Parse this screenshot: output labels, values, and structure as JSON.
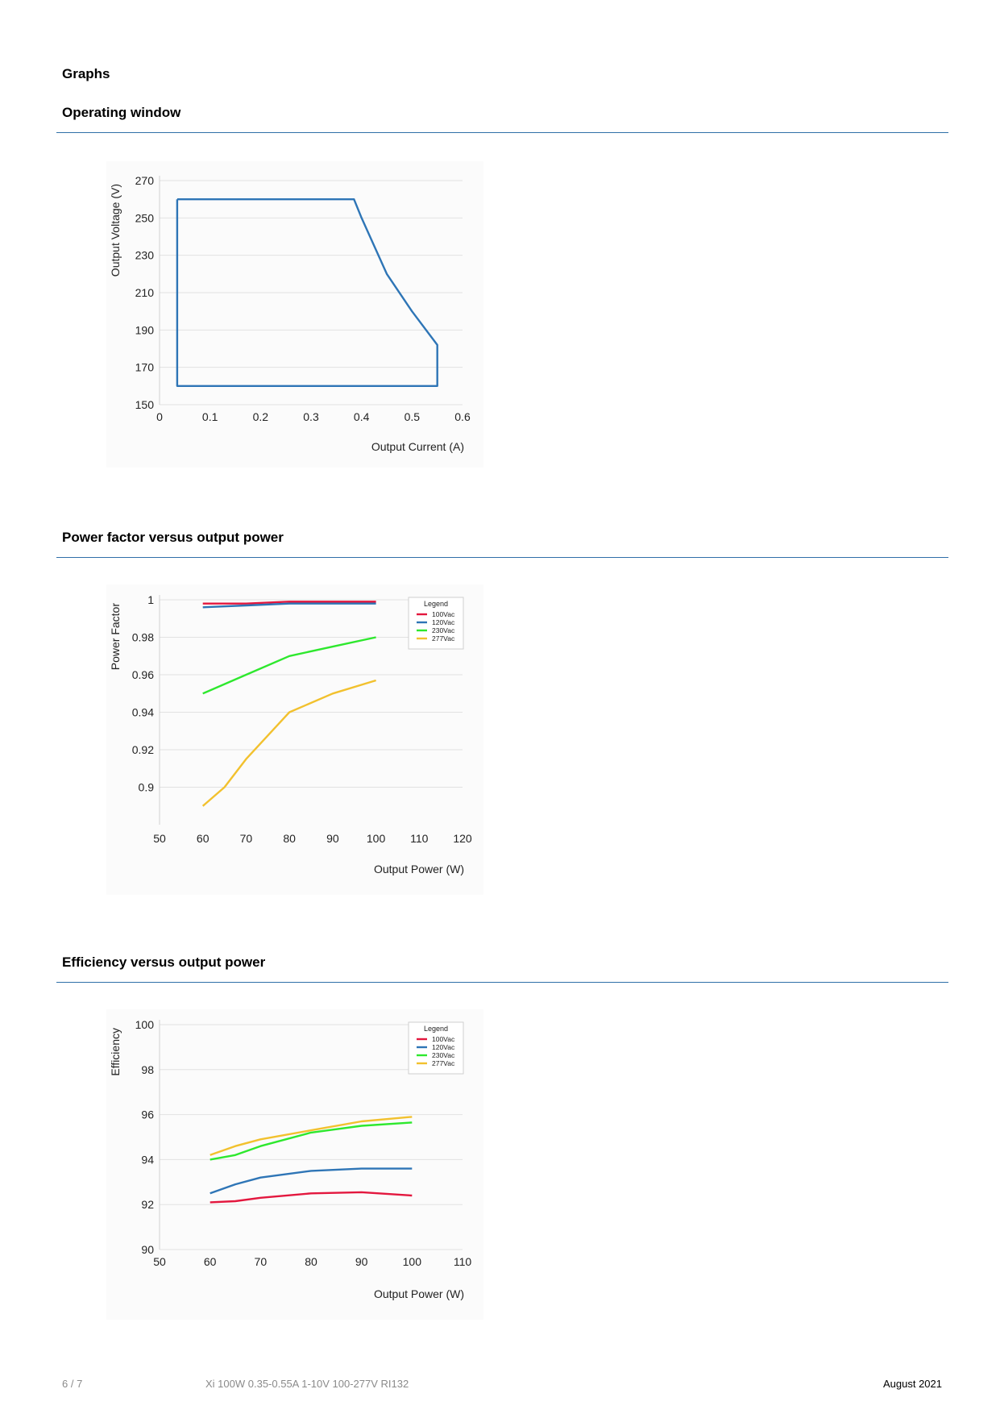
{
  "page": {
    "heading": "Graphs",
    "footer_page": "6 / 7",
    "footer_product": "Xi 100W 0.35-0.55A 1-10V 100-277V RI132",
    "footer_date": "August 2021"
  },
  "sections": [
    {
      "title": "Operating window"
    },
    {
      "title": "Power factor versus output power"
    },
    {
      "title": "Efficiency versus output power"
    }
  ],
  "chart_data": [
    {
      "type": "line",
      "title": "",
      "xlabel": "Output Current (A)",
      "ylabel": "Output Voltage (V)",
      "xlim": [
        0,
        0.6
      ],
      "ylim": [
        150,
        270
      ],
      "xticks": [
        0,
        0.1,
        0.2,
        0.3,
        0.4,
        0.5,
        0.6
      ],
      "yticks": [
        150,
        170,
        190,
        210,
        230,
        250,
        270
      ],
      "xtick_labels": [
        "0",
        "0.1",
        "0.2",
        "0.3",
        "0.4",
        "0.5",
        "0.6"
      ],
      "ytick_labels": [
        "150",
        "170",
        "190",
        "210",
        "230",
        "250",
        "270"
      ],
      "grid": true,
      "legend": null,
      "series": [
        {
          "color": "#2e75b6",
          "x": [
            0.035,
            0.385,
            0.4,
            0.45,
            0.5,
            0.55,
            0.55,
            0.035,
            0.035
          ],
          "y": [
            260,
            260,
            250,
            220,
            200,
            182,
            160,
            160,
            260
          ]
        }
      ]
    },
    {
      "type": "line",
      "title": "",
      "xlabel": "Output Power (W)",
      "ylabel": "Power Factor",
      "xlim": [
        50,
        120
      ],
      "ylim": [
        0.88,
        1.0
      ],
      "xticks": [
        50,
        60,
        70,
        80,
        90,
        100,
        110,
        120
      ],
      "yticks": [
        0.9,
        0.92,
        0.94,
        0.96,
        0.98,
        1.0
      ],
      "xtick_labels": [
        "50",
        "60",
        "70",
        "80",
        "90",
        "100",
        "110",
        "120"
      ],
      "ytick_labels": [
        "0.9",
        "0.92",
        "0.94",
        "0.96",
        "0.98",
        "1"
      ],
      "grid": true,
      "legend": {
        "title": "Legend",
        "placement": "top-right"
      },
      "series": [
        {
          "name": "100Vac",
          "color": "#e3173e",
          "x": [
            60,
            70,
            80,
            90,
            100
          ],
          "y": [
            0.998,
            0.998,
            0.999,
            0.999,
            0.999
          ]
        },
        {
          "name": "120Vac",
          "color": "#2e75b6",
          "x": [
            60,
            70,
            80,
            90,
            100
          ],
          "y": [
            0.996,
            0.997,
            0.998,
            0.998,
            0.998
          ]
        },
        {
          "name": "230Vac",
          "color": "#2ee82e",
          "x": [
            60,
            70,
            80,
            90,
            100
          ],
          "y": [
            0.95,
            0.96,
            0.97,
            0.975,
            0.98
          ]
        },
        {
          "name": "277Vac",
          "color": "#f2c12e",
          "x": [
            60,
            65,
            70,
            80,
            90,
            100
          ],
          "y": [
            0.89,
            0.9,
            0.915,
            0.94,
            0.95,
            0.957
          ]
        }
      ]
    },
    {
      "type": "line",
      "title": "",
      "xlabel": "Output Power (W)",
      "ylabel": "Efficiency",
      "xlim": [
        50,
        110
      ],
      "ylim": [
        90,
        100
      ],
      "xticks": [
        50,
        60,
        70,
        80,
        90,
        100,
        110
      ],
      "yticks": [
        90,
        92,
        94,
        96,
        98,
        100
      ],
      "xtick_labels": [
        "50",
        "60",
        "70",
        "80",
        "90",
        "100",
        "110"
      ],
      "ytick_labels": [
        "90",
        "92",
        "94",
        "96",
        "98",
        "100"
      ],
      "grid": true,
      "legend": {
        "title": "Legend",
        "placement": "top-right"
      },
      "series": [
        {
          "name": "100Vac",
          "color": "#e3173e",
          "x": [
            60,
            65,
            70,
            80,
            90,
            100
          ],
          "y": [
            92.1,
            92.15,
            92.3,
            92.5,
            92.55,
            92.4
          ]
        },
        {
          "name": "120Vac",
          "color": "#2e75b6",
          "x": [
            60,
            65,
            70,
            80,
            90,
            100
          ],
          "y": [
            92.5,
            92.9,
            93.2,
            93.5,
            93.6,
            93.6
          ]
        },
        {
          "name": "230Vac",
          "color": "#2ee82e",
          "x": [
            60,
            65,
            70,
            80,
            90,
            100
          ],
          "y": [
            94.0,
            94.2,
            94.6,
            95.2,
            95.5,
            95.65
          ]
        },
        {
          "name": "277Vac",
          "color": "#f2c12e",
          "x": [
            60,
            65,
            70,
            80,
            90,
            100
          ],
          "y": [
            94.2,
            94.6,
            94.9,
            95.3,
            95.7,
            95.9
          ]
        }
      ]
    }
  ]
}
